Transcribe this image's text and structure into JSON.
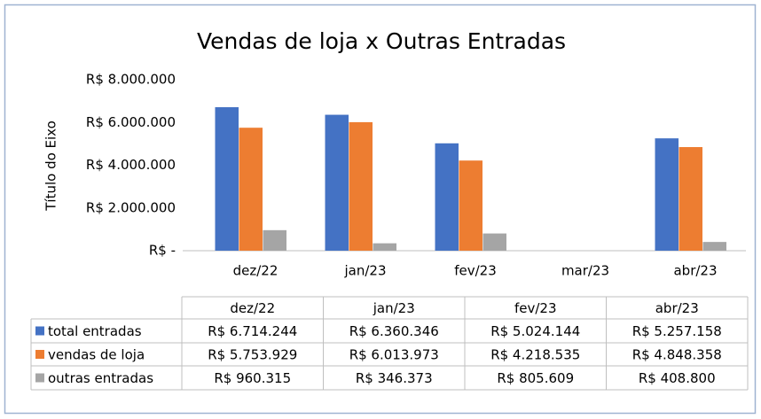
{
  "chart_data": {
    "type": "bar",
    "title": "Vendas de loja x Outras Entradas",
    "y_label": "Título do Eixo",
    "categories": [
      "dez/22",
      "jan/23",
      "fev/23",
      "mar/23",
      "abr/23"
    ],
    "series": [
      {
        "name": "total entradas",
        "color": "#4472c4",
        "values": [
          6714244,
          6360346,
          5024144,
          null,
          5257158
        ],
        "value_labels": [
          "R$ 6.714.244",
          "R$ 6.360.346",
          "R$ 5.024.144",
          null,
          "R$ 5.257.158"
        ]
      },
      {
        "name": "vendas de loja",
        "color": "#ed7d31",
        "values": [
          5753929,
          6013973,
          4218535,
          null,
          4848358
        ],
        "value_labels": [
          "R$ 5.753.929",
          "R$ 6.013.973",
          "R$ 4.218.535",
          null,
          "R$ 4.848.358"
        ]
      },
      {
        "name": "outras entradas",
        "color": "#a5a5a5",
        "values": [
          960315,
          346373,
          805609,
          null,
          408800
        ],
        "value_labels": [
          "R$ 960.315",
          "R$ 346.373",
          "R$ 805.609",
          null,
          "R$ 408.800"
        ]
      }
    ],
    "ylim": [
      0,
      8000000
    ],
    "yticks": [
      {
        "value": 0,
        "label": "R$ -"
      },
      {
        "value": 2000000,
        "label": "R$ 2.000.000"
      },
      {
        "value": 4000000,
        "label": "R$ 4.000.000"
      },
      {
        "value": 6000000,
        "label": "R$ 6.000.000"
      },
      {
        "value": 8000000,
        "label": "R$ 8.000.000"
      }
    ],
    "grid": false
  }
}
